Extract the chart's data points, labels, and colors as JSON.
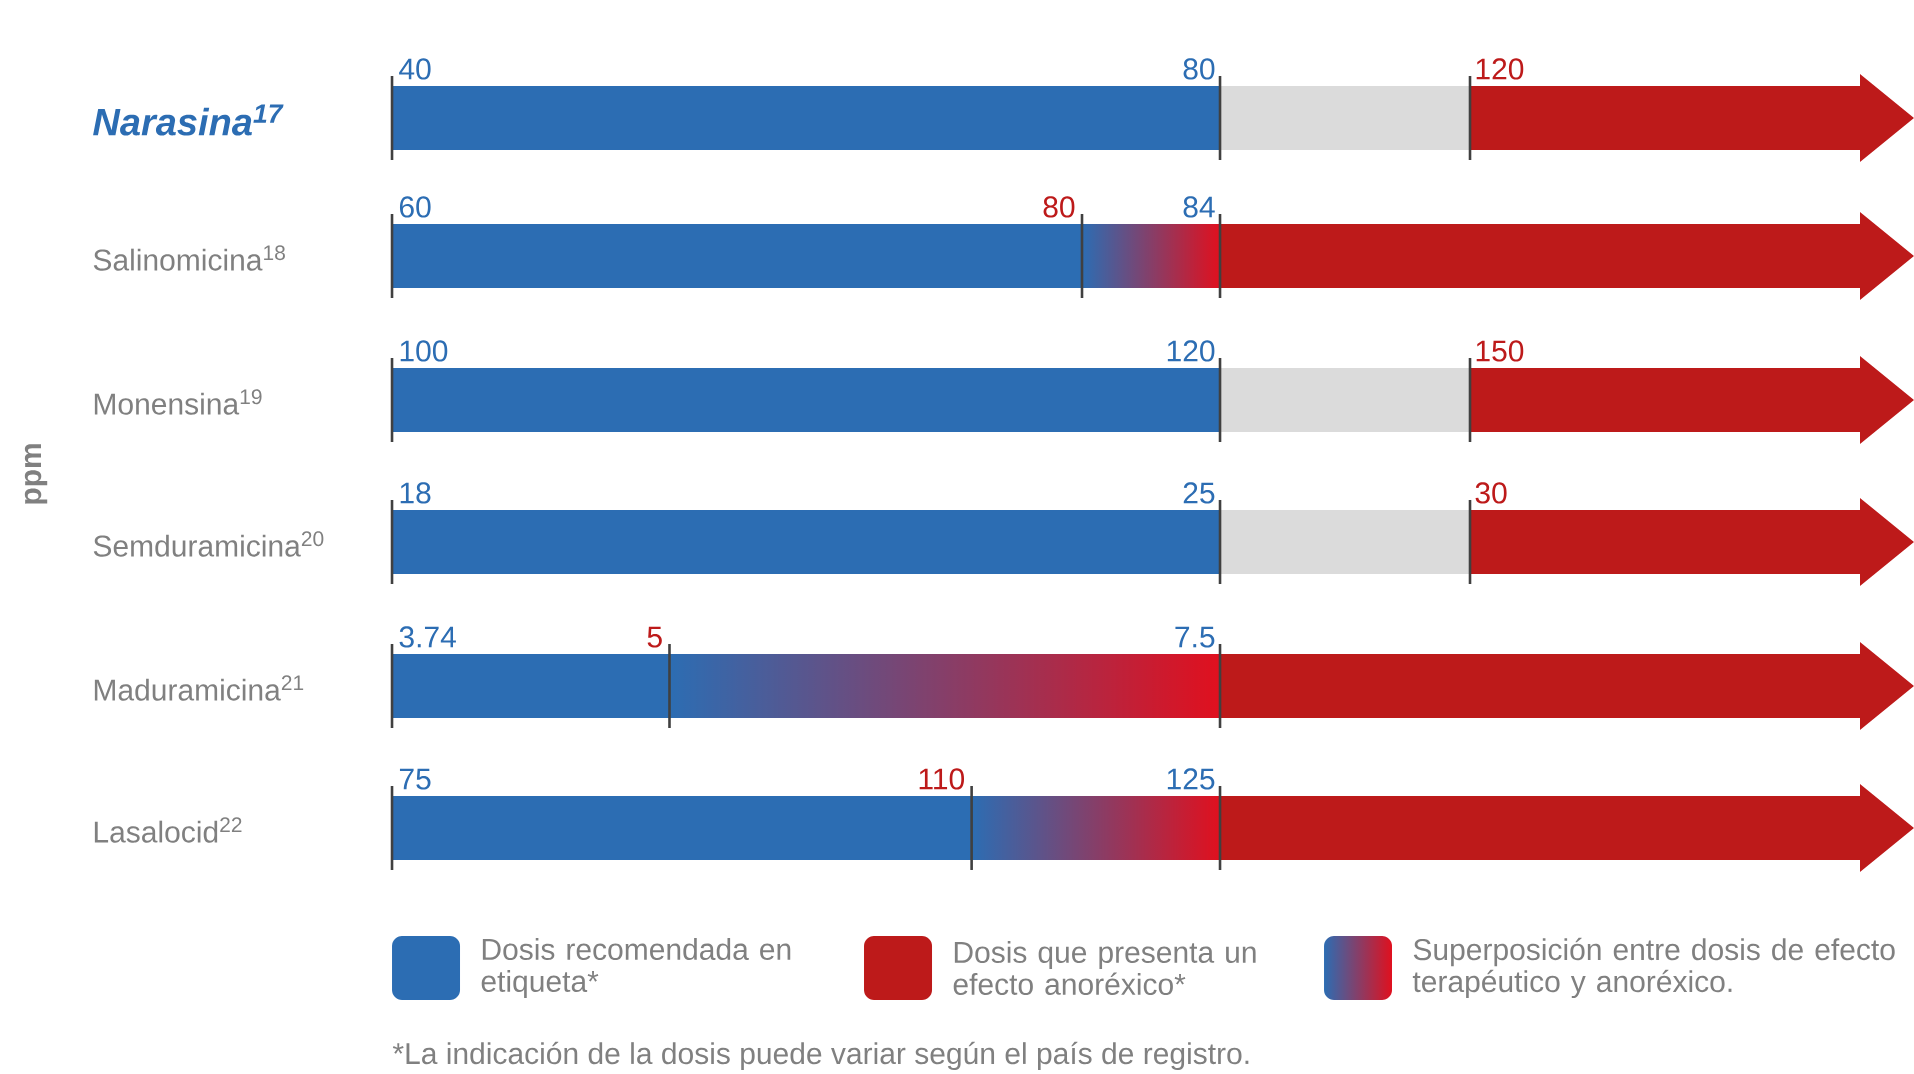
{
  "chart_data": {
    "type": "other",
    "data_labels": true,
    "ylabel": "ppm",
    "categories": [
      "Narasina$^{17}$",
      "Salinomicina$^{18}$",
      "Monensina$^{19}$",
      "Semduramicina$^{20}$",
      "Maduramicina$^{21}$",
      "Lasalocid$^{22}$"
    ],
    "series": [
      {
        "name": "Dosis recomendada en etiqueta*",
        "color": "#2c6db3",
        "values": [
          40,
          60,
          100,
          18,
          3.74,
          75
        ]
      },
      {
        "color": "#2c6db3",
        "values": [
          80,
          84,
          120,
          25,
          7.5,
          125
        ]
      },
      {
        "name": "Dosis que presenta un efecto anoréxico*",
        "color": "#bd1a1a",
        "values": [
          120,
          80,
          150,
          30,
          5,
          110
        ]
      },
      {
        "name": "Superposición entre dosis de efecto terapéutico y anoréxico.",
        "color": "#e0101e",
        "values": [
          null,
          null,
          null,
          null,
          null,
          null
        ]
      }
    ],
    "legend": "bottom",
    "annotations": [
      "*La indicación de la dosis puede variar según el país de registro."
    ]
  }
}
